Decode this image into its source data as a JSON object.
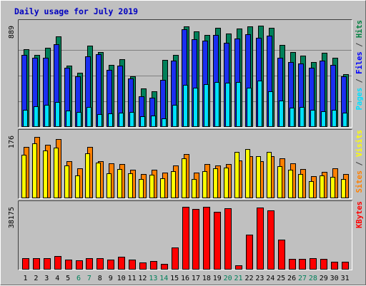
{
  "chart_data": {
    "type": "bar",
    "title": "Daily usage for July 2019",
    "categories": [
      "1",
      "2",
      "3",
      "4",
      "5",
      "6",
      "7",
      "8",
      "9",
      "10",
      "11",
      "12",
      "13",
      "14",
      "15",
      "16",
      "17",
      "18",
      "19",
      "20",
      "21",
      "22",
      "23",
      "24",
      "25",
      "26",
      "27",
      "28",
      "29",
      "30",
      "31"
    ],
    "weekend_days": [
      "6",
      "7",
      "13",
      "14",
      "20",
      "21",
      "27",
      "28"
    ],
    "panels": [
      {
        "name": "hits-files-pages",
        "ylabel_parts": [
          {
            "text": "Pages",
            "color": "#00e0ff"
          },
          {
            "text": " / ",
            "color": "#404040"
          },
          {
            "text": "Files",
            "color": "#0000ff"
          },
          {
            "text": " / ",
            "color": "#404040"
          },
          {
            "text": "Hits",
            "color": "#008040"
          }
        ],
        "max_label": "889",
        "ymax": 889,
        "series": [
          {
            "name": "Hits",
            "color": "#00805a",
            "values": [
              673,
              625,
              684,
              781,
              528,
              470,
              704,
              650,
              536,
              586,
              439,
              331,
              307,
              578,
              621,
              873,
              827,
              799,
              861,
              806,
              851,
              872,
              875,
              857,
              707,
              646,
              617,
              562,
              642,
              596,
              457
            ]
          },
          {
            "name": "Files",
            "color": "#1a2ff0",
            "values": [
              625,
              597,
              597,
              716,
              511,
              440,
              609,
              628,
              491,
              532,
              420,
              267,
              251,
              406,
              575,
              845,
              758,
              748,
              794,
              727,
              767,
              800,
              771,
              790,
              598,
              563,
              551,
              514,
              577,
              539,
              437
            ]
          },
          {
            "name": "Pages",
            "color": "#00e0ff",
            "values": [
              150,
              178,
              194,
              213,
              144,
              130,
              171,
              109,
              120,
              122,
              130,
              95,
              98,
              72,
              190,
              367,
              342,
              372,
              389,
              381,
              386,
              340,
              402,
              311,
              230,
              167,
              171,
              148,
              136,
              146,
              125
            ]
          }
        ]
      },
      {
        "name": "visits-sites",
        "ylabel_parts": [
          {
            "text": "Sites",
            "color": "#ff8000"
          },
          {
            "text": " / ",
            "color": "#404040"
          },
          {
            "text": "Visits",
            "color": "#ffff00"
          }
        ],
        "max_label": "176",
        "ymax": 176,
        "series": [
          {
            "name": "Visits",
            "color": "#ffff00",
            "values": [
              119,
              151,
              131,
              139,
              89,
              63,
              123,
              97,
              69,
              81,
              69,
              53,
              64,
              54,
              75,
              110,
              52,
              75,
              83,
              85,
              128,
              135,
              115,
              128,
              88,
              78,
              66,
              46,
              63,
              59,
              52
            ]
          },
          {
            "name": "Sites",
            "color": "#ff8000",
            "values": [
              141,
              169,
              146,
              163,
              102,
              82,
              141,
              102,
              95,
              93,
              79,
              67,
              78,
              71,
              89,
              121,
              71,
              94,
              89,
              94,
              103,
              115,
              102,
              115,
              110,
              95,
              80,
              61,
              73,
              82,
              67
            ]
          }
        ]
      },
      {
        "name": "kbytes",
        "ylabel_parts": [
          {
            "text": "KBytes",
            "color": "#ff0000"
          }
        ],
        "max_label": "38175",
        "ymax": 38175,
        "series": [
          {
            "name": "KBytes",
            "color": "#ff0000",
            "values": [
              6930,
              6710,
              6710,
              8140,
              5830,
              5500,
              6930,
              6820,
              6050,
              7480,
              6050,
              4180,
              5060,
              3300,
              13090,
              37400,
              35860,
              37400,
              34320,
              36630,
              2420,
              20680,
              37070,
              35200,
              17930,
              6490,
              6380,
              6710,
              6160,
              4730,
              4730
            ]
          }
        ]
      }
    ]
  }
}
